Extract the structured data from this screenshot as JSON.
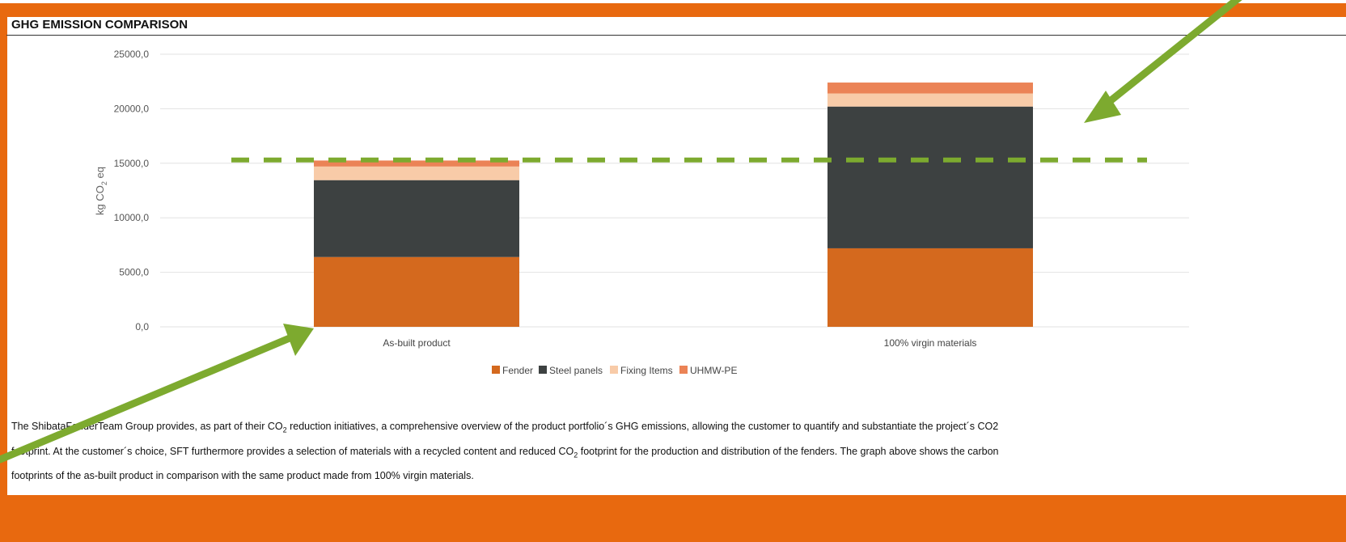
{
  "header": {
    "title": "GHG EMISSION COMPARISON"
  },
  "colors": {
    "frame": "#E8690F",
    "fender": "#D4691E",
    "steel_panels": "#3D4141",
    "fixing_items": "#F8CBA8",
    "uhmw_pe": "#EB8356",
    "reference_line": "#7DAA2F",
    "arrow": "#7DAA2F",
    "grid": "#E2E2E2"
  },
  "chart_data": {
    "type": "bar",
    "stacked": true,
    "title": "",
    "xlabel": "",
    "ylabel": "kg CO2 eq",
    "ylabel_parts": [
      "kg CO",
      "2",
      " eq"
    ],
    "ylim": [
      0,
      25000
    ],
    "yticks": [
      0,
      5000,
      10000,
      15000,
      20000,
      25000
    ],
    "ytick_labels": [
      "0,0",
      "5000,0",
      "10000,0",
      "15000,0",
      "20000,0",
      "25000,0"
    ],
    "grid": true,
    "legend_position": "bottom",
    "categories": [
      "As-built product",
      "100% virgin materials"
    ],
    "series": [
      {
        "name": "Fender",
        "values": [
          6400,
          7200
        ]
      },
      {
        "name": "Steel panels",
        "values": [
          7050,
          13000
        ]
      },
      {
        "name": "Fixing Items",
        "values": [
          1250,
          1200
        ]
      },
      {
        "name": "UHMW-PE",
        "values": [
          550,
          1000
        ]
      }
    ],
    "reference_line": {
      "value": 15300,
      "style": "dashed"
    }
  },
  "description": {
    "line1_a": "The ShibataFenderTeam Group provides, as part of their CO",
    "line1_sub": "2",
    "line1_b": " reduction initiatives, a comprehensive overview of the product portfolio´s GHG emissions, allowing the customer to quantify and substantiate the project´s CO2",
    "line2_a": "footprint. At the customer´s choice, SFT furthermore provides a selection of materials with a recycled content and reduced CO",
    "line2_sub": "2",
    "line2_b": " footprint for the production and distribution of the fenders. The graph above shows the carbon",
    "line3": "footprints of the as-built product in comparison with the same product made from 100% virgin materials."
  }
}
